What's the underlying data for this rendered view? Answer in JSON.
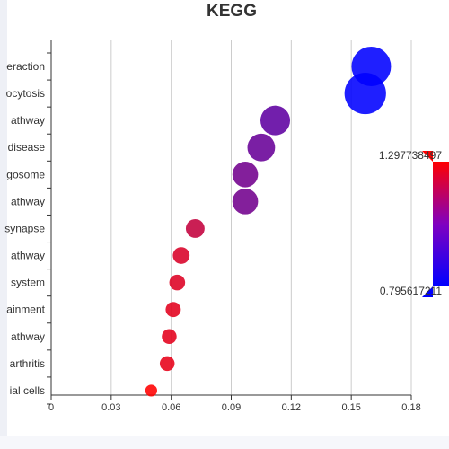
{
  "chart_data": {
    "type": "scatter",
    "title": "KEGG",
    "xlabel": "",
    "ylabel": "",
    "xlim": [
      0,
      0.18
    ],
    "x_ticks": [
      "0",
      "0.03",
      "0.06",
      "0.09",
      "0.12",
      "0.15",
      "0.18"
    ],
    "grid": true,
    "categories": [
      "eraction",
      "ocytosis",
      "athway",
      "disease",
      "gosome",
      "athway",
      "synapse",
      "athway",
      "system",
      "ainment",
      "athway",
      "arthritis",
      "ial cells"
    ],
    "points": [
      {
        "x": 0.16,
        "color_value": 0.7956,
        "size": 2.0
      },
      {
        "x": 0.157,
        "color_value": 0.7956,
        "size": 2.1
      },
      {
        "x": 0.112,
        "color_value": 0.98,
        "size": 1.5
      },
      {
        "x": 0.105,
        "color_value": 1.0,
        "size": 1.4
      },
      {
        "x": 0.097,
        "color_value": 1.02,
        "size": 1.3
      },
      {
        "x": 0.097,
        "color_value": 1.02,
        "size": 1.3
      },
      {
        "x": 0.072,
        "color_value": 1.18,
        "size": 0.95
      },
      {
        "x": 0.065,
        "color_value": 1.22,
        "size": 0.85
      },
      {
        "x": 0.063,
        "color_value": 1.23,
        "size": 0.8
      },
      {
        "x": 0.061,
        "color_value": 1.24,
        "size": 0.77
      },
      {
        "x": 0.059,
        "color_value": 1.245,
        "size": 0.75
      },
      {
        "x": 0.058,
        "color_value": 1.25,
        "size": 0.75
      },
      {
        "x": 0.05,
        "color_value": 1.2977,
        "size": 0.6
      }
    ],
    "visual_map": {
      "max_label": "1.297738497",
      "min_label": "0.795617211",
      "max": 1.297738497,
      "min": 0.795617211,
      "max_color": "#ff0000",
      "min_color": "#0000ff"
    },
    "colors": {
      "grid": "#cccccc",
      "axis": "#333333"
    }
  }
}
